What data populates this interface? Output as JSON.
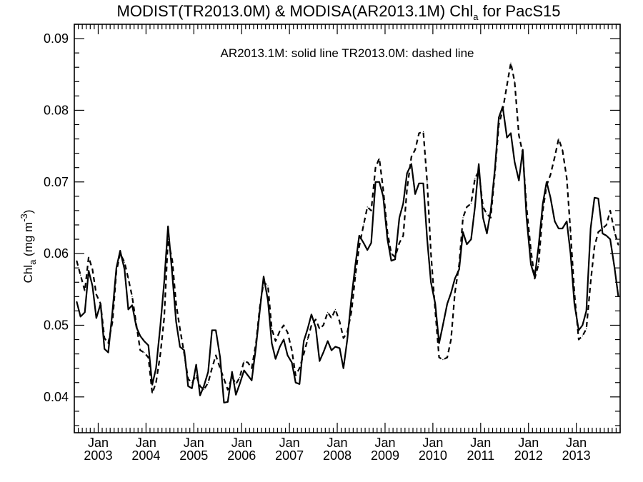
{
  "chart_data": {
    "type": "line",
    "title_main": "MODIST(TR2013.0M) & MODISA(AR2013.1M)  Chl",
    "title_sub": "a",
    "title_tail": " for PacS15",
    "ylabel_main": "Chl",
    "ylabel_sub": "a",
    "ylabel_unit": " (mg m",
    "ylabel_sup": "-3",
    "ylabel_close": ")",
    "annotation": "AR2013.1M: solid line   TR2013.0M: dashed line",
    "xlim": [
      2002.5,
      2013.917
    ],
    "ylim": [
      0.035,
      0.092
    ],
    "yticks": [
      "0.04",
      "0.05",
      "0.06",
      "0.07",
      "0.08",
      "0.09"
    ],
    "ytick_values": [
      0.04,
      0.05,
      0.06,
      0.07,
      0.08,
      0.09
    ],
    "xticks_month": [
      "Jan",
      "Jan",
      "Jan",
      "Jan",
      "Jan",
      "Jan",
      "Jan",
      "Jan",
      "Jan",
      "Jan",
      "Jan"
    ],
    "xticks_year": [
      "2003",
      "2004",
      "2005",
      "2006",
      "2007",
      "2008",
      "2009",
      "2010",
      "2011",
      "2012",
      "2013"
    ],
    "xtick_values": [
      2003,
      2004,
      2005,
      2006,
      2007,
      2008,
      2009,
      2010,
      2011,
      2012,
      2013
    ],
    "series": [
      {
        "style": "solid",
        "points": [
          [
            2002.55,
            0.0533
          ],
          [
            2002.63,
            0.0512
          ],
          [
            2002.72,
            0.0518
          ],
          [
            2002.8,
            0.0576
          ],
          [
            2002.88,
            0.0555
          ],
          [
            2002.96,
            0.051
          ],
          [
            2003.05,
            0.053
          ],
          [
            2003.13,
            0.0467
          ],
          [
            2003.21,
            0.0462
          ],
          [
            2003.3,
            0.052
          ],
          [
            2003.38,
            0.058
          ],
          [
            2003.46,
            0.0604
          ],
          [
            2003.55,
            0.0578
          ],
          [
            2003.63,
            0.0522
          ],
          [
            2003.71,
            0.0528
          ],
          [
            2003.8,
            0.0497
          ],
          [
            2003.88,
            0.0485
          ],
          [
            2003.96,
            0.0478
          ],
          [
            2004.05,
            0.0472
          ],
          [
            2004.13,
            0.0417
          ],
          [
            2004.21,
            0.044
          ],
          [
            2004.3,
            0.05
          ],
          [
            2004.38,
            0.056
          ],
          [
            2004.46,
            0.0638
          ],
          [
            2004.55,
            0.057
          ],
          [
            2004.63,
            0.0505
          ],
          [
            2004.71,
            0.047
          ],
          [
            2004.8,
            0.0465
          ],
          [
            2004.88,
            0.0415
          ],
          [
            2004.96,
            0.0412
          ],
          [
            2005.05,
            0.0445
          ],
          [
            2005.13,
            0.0402
          ],
          [
            2005.21,
            0.0415
          ],
          [
            2005.3,
            0.0435
          ],
          [
            2005.38,
            0.0493
          ],
          [
            2005.46,
            0.0493
          ],
          [
            2005.55,
            0.0455
          ],
          [
            2005.63,
            0.0392
          ],
          [
            2005.71,
            0.0393
          ],
          [
            2005.8,
            0.0435
          ],
          [
            2005.88,
            0.0403
          ],
          [
            2005.96,
            0.0418
          ],
          [
            2006.05,
            0.0437
          ],
          [
            2006.13,
            0.043
          ],
          [
            2006.21,
            0.0423
          ],
          [
            2006.3,
            0.047
          ],
          [
            2006.38,
            0.052
          ],
          [
            2006.46,
            0.0568
          ],
          [
            2006.55,
            0.0535
          ],
          [
            2006.63,
            0.0475
          ],
          [
            2006.71,
            0.0453
          ],
          [
            2006.8,
            0.047
          ],
          [
            2006.88,
            0.048
          ],
          [
            2006.96,
            0.0458
          ],
          [
            2007.05,
            0.0448
          ],
          [
            2007.13,
            0.042
          ],
          [
            2007.21,
            0.0418
          ],
          [
            2007.3,
            0.0478
          ],
          [
            2007.38,
            0.0495
          ],
          [
            2007.46,
            0.0515
          ],
          [
            2007.55,
            0.0497
          ],
          [
            2007.63,
            0.045
          ],
          [
            2007.71,
            0.0462
          ],
          [
            2007.8,
            0.0478
          ],
          [
            2007.88,
            0.0465
          ],
          [
            2007.96,
            0.047
          ],
          [
            2008.05,
            0.0468
          ],
          [
            2008.13,
            0.044
          ],
          [
            2008.21,
            0.048
          ],
          [
            2008.3,
            0.054
          ],
          [
            2008.38,
            0.0585
          ],
          [
            2008.46,
            0.0625
          ],
          [
            2008.55,
            0.0615
          ],
          [
            2008.63,
            0.0605
          ],
          [
            2008.71,
            0.0615
          ],
          [
            2008.8,
            0.07
          ],
          [
            2008.88,
            0.07
          ],
          [
            2008.96,
            0.068
          ],
          [
            2009.05,
            0.062
          ],
          [
            2009.13,
            0.059
          ],
          [
            2009.21,
            0.0592
          ],
          [
            2009.3,
            0.065
          ],
          [
            2009.38,
            0.067
          ],
          [
            2009.46,
            0.0712
          ],
          [
            2009.55,
            0.0725
          ],
          [
            2009.63,
            0.0683
          ],
          [
            2009.71,
            0.0698
          ],
          [
            2009.8,
            0.0698
          ],
          [
            2009.88,
            0.062
          ],
          [
            2009.96,
            0.056
          ],
          [
            2010.05,
            0.053
          ],
          [
            2010.13,
            0.0475
          ],
          [
            2010.21,
            0.05
          ],
          [
            2010.3,
            0.053
          ],
          [
            2010.38,
            0.0545
          ],
          [
            2010.46,
            0.0565
          ],
          [
            2010.55,
            0.0578
          ],
          [
            2010.63,
            0.063
          ],
          [
            2010.71,
            0.0613
          ],
          [
            2010.8,
            0.062
          ],
          [
            2010.88,
            0.0665
          ],
          [
            2010.96,
            0.0725
          ],
          [
            2011.05,
            0.065
          ],
          [
            2011.13,
            0.0628
          ],
          [
            2011.21,
            0.066
          ],
          [
            2011.3,
            0.072
          ],
          [
            2011.38,
            0.079
          ],
          [
            2011.46,
            0.0805
          ],
          [
            2011.55,
            0.0762
          ],
          [
            2011.63,
            0.0768
          ],
          [
            2011.71,
            0.0728
          ],
          [
            2011.8,
            0.0702
          ],
          [
            2011.88,
            0.0745
          ],
          [
            2011.96,
            0.065
          ],
          [
            2012.05,
            0.0585
          ],
          [
            2012.13,
            0.0567
          ],
          [
            2012.21,
            0.061
          ],
          [
            2012.3,
            0.067
          ],
          [
            2012.38,
            0.07
          ],
          [
            2012.46,
            0.0678
          ],
          [
            2012.55,
            0.0645
          ],
          [
            2012.63,
            0.0635
          ],
          [
            2012.71,
            0.0635
          ],
          [
            2012.8,
            0.0645
          ],
          [
            2012.88,
            0.06
          ],
          [
            2012.96,
            0.053
          ],
          [
            2013.05,
            0.0493
          ],
          [
            2013.13,
            0.05
          ],
          [
            2013.21,
            0.052
          ],
          [
            2013.3,
            0.0635
          ],
          [
            2013.38,
            0.0678
          ],
          [
            2013.46,
            0.0677
          ],
          [
            2013.55,
            0.0628
          ],
          [
            2013.63,
            0.0625
          ],
          [
            2013.71,
            0.062
          ],
          [
            2013.8,
            0.058
          ],
          [
            2013.88,
            0.054
          ]
        ]
      },
      {
        "style": "dashed",
        "points": [
          [
            2002.55,
            0.059
          ],
          [
            2002.63,
            0.057
          ],
          [
            2002.72,
            0.0548
          ],
          [
            2002.8,
            0.0595
          ],
          [
            2002.88,
            0.0578
          ],
          [
            2002.96,
            0.0543
          ],
          [
            2003.05,
            0.053
          ],
          [
            2003.13,
            0.0482
          ],
          [
            2003.21,
            0.0475
          ],
          [
            2003.3,
            0.0505
          ],
          [
            2003.38,
            0.0575
          ],
          [
            2003.46,
            0.06
          ],
          [
            2003.55,
            0.0588
          ],
          [
            2003.63,
            0.0565
          ],
          [
            2003.71,
            0.054
          ],
          [
            2003.8,
            0.05
          ],
          [
            2003.88,
            0.0465
          ],
          [
            2003.96,
            0.0462
          ],
          [
            2004.05,
            0.0455
          ],
          [
            2004.13,
            0.0405
          ],
          [
            2004.21,
            0.042
          ],
          [
            2004.3,
            0.046
          ],
          [
            2004.38,
            0.051
          ],
          [
            2004.46,
            0.062
          ],
          [
            2004.55,
            0.059
          ],
          [
            2004.63,
            0.053
          ],
          [
            2004.71,
            0.0495
          ],
          [
            2004.8,
            0.046
          ],
          [
            2004.88,
            0.0425
          ],
          [
            2004.96,
            0.042
          ],
          [
            2005.05,
            0.043
          ],
          [
            2005.13,
            0.0415
          ],
          [
            2005.21,
            0.041
          ],
          [
            2005.3,
            0.042
          ],
          [
            2005.38,
            0.044
          ],
          [
            2005.46,
            0.0458
          ],
          [
            2005.55,
            0.044
          ],
          [
            2005.63,
            0.0425
          ],
          [
            2005.71,
            0.041
          ],
          [
            2005.8,
            0.0428
          ],
          [
            2005.88,
            0.0418
          ],
          [
            2005.96,
            0.0427
          ],
          [
            2006.05,
            0.045
          ],
          [
            2006.13,
            0.0448
          ],
          [
            2006.21,
            0.044
          ],
          [
            2006.3,
            0.0475
          ],
          [
            2006.38,
            0.0525
          ],
          [
            2006.46,
            0.056
          ],
          [
            2006.55,
            0.0555
          ],
          [
            2006.63,
            0.0495
          ],
          [
            2006.71,
            0.0478
          ],
          [
            2006.8,
            0.0492
          ],
          [
            2006.88,
            0.05
          ],
          [
            2006.96,
            0.049
          ],
          [
            2007.05,
            0.0465
          ],
          [
            2007.13,
            0.043
          ],
          [
            2007.21,
            0.044
          ],
          [
            2007.3,
            0.046
          ],
          [
            2007.38,
            0.048
          ],
          [
            2007.46,
            0.05
          ],
          [
            2007.55,
            0.0508
          ],
          [
            2007.63,
            0.0495
          ],
          [
            2007.71,
            0.05
          ],
          [
            2007.8,
            0.0518
          ],
          [
            2007.88,
            0.051
          ],
          [
            2007.96,
            0.0522
          ],
          [
            2008.05,
            0.0505
          ],
          [
            2008.13,
            0.0482
          ],
          [
            2008.21,
            0.049
          ],
          [
            2008.3,
            0.052
          ],
          [
            2008.38,
            0.057
          ],
          [
            2008.46,
            0.061
          ],
          [
            2008.55,
            0.064
          ],
          [
            2008.63,
            0.0665
          ],
          [
            2008.71,
            0.066
          ],
          [
            2008.8,
            0.072
          ],
          [
            2008.88,
            0.0733
          ],
          [
            2008.96,
            0.069
          ],
          [
            2009.05,
            0.063
          ],
          [
            2009.13,
            0.06
          ],
          [
            2009.21,
            0.0595
          ],
          [
            2009.3,
            0.0615
          ],
          [
            2009.38,
            0.0625
          ],
          [
            2009.46,
            0.069
          ],
          [
            2009.55,
            0.0735
          ],
          [
            2009.63,
            0.0745
          ],
          [
            2009.71,
            0.0768
          ],
          [
            2009.8,
            0.077
          ],
          [
            2009.88,
            0.07
          ],
          [
            2009.96,
            0.06
          ],
          [
            2010.05,
            0.052
          ],
          [
            2010.13,
            0.0455
          ],
          [
            2010.21,
            0.0452
          ],
          [
            2010.3,
            0.0455
          ],
          [
            2010.38,
            0.048
          ],
          [
            2010.46,
            0.0545
          ],
          [
            2010.55,
            0.0585
          ],
          [
            2010.63,
            0.065
          ],
          [
            2010.71,
            0.0665
          ],
          [
            2010.8,
            0.067
          ],
          [
            2010.88,
            0.0705
          ],
          [
            2010.96,
            0.0715
          ],
          [
            2011.05,
            0.0665
          ],
          [
            2011.13,
            0.0655
          ],
          [
            2011.21,
            0.065
          ],
          [
            2011.3,
            0.0715
          ],
          [
            2011.38,
            0.078
          ],
          [
            2011.46,
            0.08
          ],
          [
            2011.55,
            0.0835
          ],
          [
            2011.63,
            0.0866
          ],
          [
            2011.71,
            0.084
          ],
          [
            2011.8,
            0.0765
          ],
          [
            2011.88,
            0.074
          ],
          [
            2011.96,
            0.0665
          ],
          [
            2012.05,
            0.0605
          ],
          [
            2012.13,
            0.0565
          ],
          [
            2012.21,
            0.0585
          ],
          [
            2012.3,
            0.066
          ],
          [
            2012.38,
            0.0695
          ],
          [
            2012.46,
            0.071
          ],
          [
            2012.55,
            0.0735
          ],
          [
            2012.63,
            0.076
          ],
          [
            2012.71,
            0.0745
          ],
          [
            2012.8,
            0.0705
          ],
          [
            2012.88,
            0.063
          ],
          [
            2012.96,
            0.0545
          ],
          [
            2013.05,
            0.048
          ],
          [
            2013.13,
            0.0485
          ],
          [
            2013.21,
            0.0495
          ],
          [
            2013.3,
            0.056
          ],
          [
            2013.38,
            0.061
          ],
          [
            2013.46,
            0.063
          ],
          [
            2013.55,
            0.0635
          ],
          [
            2013.63,
            0.064
          ],
          [
            2013.71,
            0.066
          ],
          [
            2013.8,
            0.063
          ],
          [
            2013.88,
            0.0612
          ]
        ]
      }
    ]
  }
}
